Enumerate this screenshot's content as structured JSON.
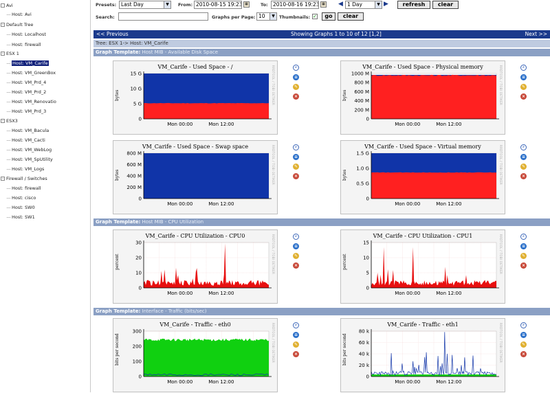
{
  "tree": {
    "items": [
      {
        "label": "Avi",
        "level": 1,
        "expander": ""
      },
      {
        "label": "Host: Avi",
        "level": 2
      },
      {
        "label": "Default Tree",
        "level": 1,
        "expander": "-"
      },
      {
        "label": "Host: Localhost",
        "level": 2
      },
      {
        "label": "Host: firewall",
        "level": 2
      },
      {
        "label": "ESX 1",
        "level": 1,
        "expander": "-"
      },
      {
        "label": "Host: VM_Carife",
        "level": 2,
        "selected": true
      },
      {
        "label": "Host: VM_GreenBox",
        "level": 2
      },
      {
        "label": "Host: VM_Prd_4",
        "level": 2
      },
      {
        "label": "Host: VM_Prd_2",
        "level": 2
      },
      {
        "label": "Host: VM_Renovatio",
        "level": 2
      },
      {
        "label": "Host: VM_Prd_3",
        "level": 2
      },
      {
        "label": "ESX3",
        "level": 1,
        "expander": "-"
      },
      {
        "label": "Host: VM_Bacula",
        "level": 2
      },
      {
        "label": "Host: VM_Cacti",
        "level": 2
      },
      {
        "label": "Host: VM_WebLog",
        "level": 2
      },
      {
        "label": "Host: VM_SpUtility",
        "level": 2
      },
      {
        "label": "Host: VM_Logs",
        "level": 2
      },
      {
        "label": "Firewall / Switches",
        "level": 1,
        "expander": "-"
      },
      {
        "label": "Host: firewall",
        "level": 2
      },
      {
        "label": "Host: cisco",
        "level": 2
      },
      {
        "label": "Host: SW0",
        "level": 2
      },
      {
        "label": "Host: SW1",
        "level": 2
      }
    ]
  },
  "filters": {
    "presets_label": "Presets:",
    "presets_value": "Last Day",
    "from_label": "From:",
    "from_value": "2010-08-15 19:23",
    "to_label": "To:",
    "to_value": "2010-08-16 19:23",
    "shift_value": "1 Day",
    "refresh_label": "refresh",
    "clear_label": "clear",
    "search_label": "Search:",
    "search_value": "",
    "gpp_label": "Graphs per Page:",
    "gpp_value": "10",
    "thumbnails_label": "Thumbnails:",
    "go_label": "go",
    "clear2_label": "clear"
  },
  "nav": {
    "prev": "<< Previous",
    "status": "Showing Graphs 1 to 10 of 12 [1,2]",
    "next": "Next >>"
  },
  "breadcrumb": "Tree: ESX 1-> Host: VM_Carife",
  "templates": [
    {
      "prefix": "Graph Template:",
      "name": "Host MIB - Available Disk Space"
    },
    {
      "prefix": "Graph Template:",
      "name": "Host MIB - CPU Utilization"
    },
    {
      "prefix": "Graph Template:",
      "name": "Interface - Traffic (bits/sec)"
    }
  ],
  "side_label": "RRDTOOL / TOBI OETIKER",
  "graphs": [
    {
      "title": "VM_Carife - Used Space - /",
      "ylabel": "bytes",
      "yticks": [
        "15 G",
        "10 G",
        "5 G",
        "0"
      ],
      "xticks": [
        "Mon 00:00",
        "Mon 12:00"
      ]
    },
    {
      "title": "VM_Carife - Used Space - Physical memory",
      "ylabel": "bytes",
      "yticks": [
        "1000 M",
        "800 M",
        "600 M",
        "400 M",
        "200 M",
        "0"
      ],
      "xticks": [
        "Mon 00:00",
        "Mon 12:00"
      ]
    },
    {
      "title": "VM_Carife - Used Space - Swap space",
      "ylabel": "bytes",
      "yticks": [
        "800 M",
        "600 M",
        "400 M",
        "200 M",
        "0"
      ],
      "xticks": [
        "Mon 00:00",
        "Mon 12:00"
      ]
    },
    {
      "title": "VM_Carife - Used Space - Virtual memory",
      "ylabel": "bytes",
      "yticks": [
        "1.5 G",
        "1.0 G",
        "0.5 G",
        "0"
      ],
      "xticks": [
        "Mon 00:00",
        "Mon 12:00"
      ]
    },
    {
      "title": "VM_Carife - CPU Utilization - CPU0",
      "ylabel": "percent",
      "yticks": [
        "30",
        "20",
        "10",
        "0"
      ],
      "xticks": [
        "Mon 00:00",
        "Mon 12:00"
      ]
    },
    {
      "title": "VM_Carife - CPU Utilization - CPU1",
      "ylabel": "percent",
      "yticks": [
        "15",
        "10",
        "5",
        "0"
      ],
      "xticks": [
        "Mon 00:00",
        "Mon 12:00"
      ]
    },
    {
      "title": "VM_Carife - Traffic - eth0",
      "ylabel": "bits per second",
      "yticks": [
        "300",
        "200",
        "100",
        "0"
      ],
      "xticks": [
        "Mon 00:00",
        "Mon 12:00"
      ]
    },
    {
      "title": "VM_Carife - Traffic - eth1",
      "ylabel": "bits per second",
      "yticks": [
        "80 k",
        "60 k",
        "40 k",
        "20 k",
        "0"
      ],
      "xticks": [
        "Mon 00:00",
        "Mon 12:00"
      ]
    }
  ]
}
